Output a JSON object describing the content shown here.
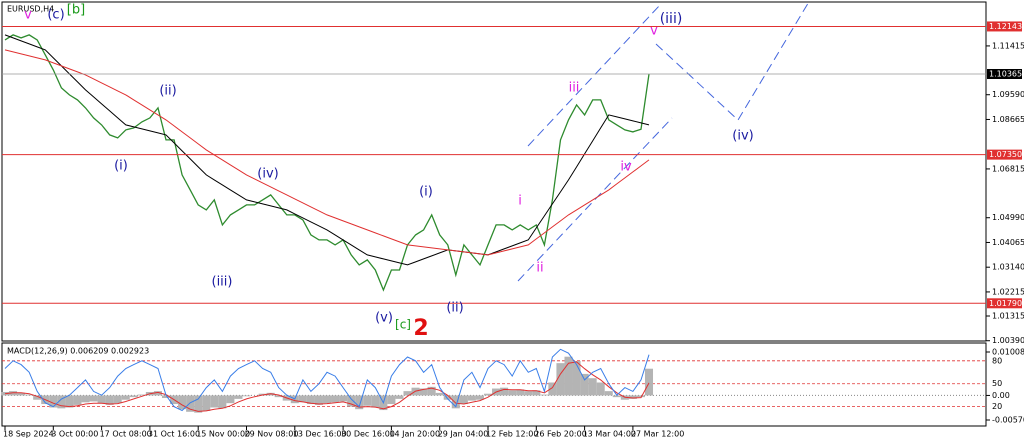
{
  "chart_data": [
    {
      "type": "line",
      "title": "EURUSD,H4",
      "categories": [
        "18 Sep 2024",
        null,
        null,
        null,
        null,
        null,
        "3 Oct 00:00",
        null,
        null,
        null,
        null,
        null,
        "17 Oct 08:00",
        null,
        null,
        null,
        null,
        null,
        "31 Oct 16:00",
        null,
        null,
        null,
        null,
        null,
        "15 Nov 00:00",
        null,
        null,
        null,
        null,
        null,
        "29 Nov 08:00",
        null,
        null,
        null,
        null,
        null,
        "13 Dec 16:00",
        null,
        null,
        null,
        null,
        null,
        "30 Dec 16:00",
        null,
        null,
        null,
        null,
        null,
        "14 Jan 20:00",
        null,
        null,
        null,
        null,
        null,
        "29 Jan 04:00",
        null,
        null,
        null,
        null,
        null,
        "12 Feb 12:00",
        null,
        null,
        null,
        null,
        null,
        "26 Feb 20:00",
        null,
        null,
        null,
        null,
        null,
        "13 Mar 04:00",
        null,
        null,
        null,
        null,
        null,
        "27 Mar 12:00",
        null,
        null
      ],
      "series": [
        {
          "color": "#2e8b2e",
          "values": [
            1.11639,
            1.11826,
            1.11714,
            1.11826,
            1.11639,
            1.11078,
            1.10517,
            1.09844,
            1.09582,
            1.09395,
            1.09096,
            1.08722,
            1.0846,
            1.08086,
            1.07974,
            1.08273,
            1.08348,
            1.08573,
            1.08722,
            1.09096,
            1.07899,
            1.07899,
            1.0659,
            1.06029,
            1.05468,
            1.05281,
            1.05655,
            1.0472,
            1.05094,
            1.05281,
            1.05468,
            1.05468,
            1.05655,
            1.05842,
            1.05468,
            1.05094,
            1.05094,
            1.04907,
            1.04346,
            1.04159,
            1.04159,
            1.03972,
            1.04159,
            1.03598,
            1.03224,
            1.03411,
            1.03037,
            1.02289,
            1.03037,
            1.03037,
            1.03972,
            1.04346,
            1.04533,
            1.05094,
            1.04346,
            1.03972,
            1.0285,
            1.03972,
            1.03598,
            1.03224,
            1.03972,
            1.0472,
            1.0472,
            1.04533,
            1.0472,
            1.04533,
            1.0472,
            1.03972,
            1.05655,
            1.07899,
            1.08647,
            1.09208,
            1.08834,
            1.09395,
            1.09395,
            1.08647,
            1.0846,
            1.08273,
            1.08199,
            1.083,
            1.10365
          ]
        },
        {
          "color": "#000000",
          "values": [
            1.11826,
            1.11714,
            1.11602,
            1.1149,
            1.11378,
            1.11265,
            1.10966,
            1.10667,
            1.10368,
            1.10069,
            1.09769,
            1.09508,
            1.09246,
            1.08984,
            1.08722,
            1.0846,
            1.08386,
            1.08311,
            1.08236,
            1.08161,
            1.08086,
            1.07787,
            1.07488,
            1.07189,
            1.0689,
            1.0659,
            1.06403,
            1.06216,
            1.06029,
            1.05842,
            1.05655,
            1.05581,
            1.05506,
            1.05431,
            1.05356,
            1.05281,
            1.05132,
            1.04982,
            1.04833,
            1.04683,
            1.04533,
            1.04346,
            1.04159,
            1.03972,
            1.03785,
            1.03598,
            1.03524,
            1.03449,
            1.03374,
            1.03299,
            1.03224,
            1.03337,
            1.03449,
            1.03561,
            1.03673,
            1.03785,
            1.03748,
            1.03711,
            1.03673,
            1.03636,
            1.03598,
            1.03711,
            1.03823,
            1.03935,
            1.04047,
            1.04159,
            1.04608,
            1.05057,
            1.05506,
            1.05954,
            1.06403,
            1.0689,
            1.07376,
            1.07862,
            1.08348,
            1.08834,
            1.08759,
            1.08685,
            1.0861,
            1.08535,
            1.0846
          ]
        },
        {
          "color": "#e03030",
          "values": [
            1.11265,
            1.11191,
            1.11116,
            1.11041,
            1.10966,
            1.10891,
            1.10779,
            1.10667,
            1.10555,
            1.10443,
            1.1033,
            1.10181,
            1.10031,
            1.09882,
            1.09732,
            1.09582,
            1.09395,
            1.09208,
            1.09021,
            1.08834,
            1.08647,
            1.08423,
            1.08199,
            1.07974,
            1.0775,
            1.07525,
            1.07338,
            1.07151,
            1.06964,
            1.06777,
            1.0659,
            1.06441,
            1.06291,
            1.06142,
            1.05992,
            1.05842,
            1.05693,
            1.05543,
            1.05394,
            1.05244,
            1.05094,
            1.04982,
            1.0487,
            1.04758,
            1.04646,
            1.04533,
            1.04421,
            1.04309,
            1.04197,
            1.04085,
            1.03972,
            1.03935,
            1.03898,
            1.0386,
            1.03823,
            1.03785,
            1.03748,
            1.03711,
            1.03673,
            1.03636,
            1.03598,
            1.03673,
            1.03748,
            1.03823,
            1.03898,
            1.03972,
            1.04197,
            1.04421,
            1.04646,
            1.0487,
            1.05094,
            1.05281,
            1.05468,
            1.05655,
            1.05842,
            1.06029,
            1.06254,
            1.06478,
            1.06703,
            1.06927,
            1.07151
          ]
        }
      ],
      "ylim": [
        1.0038,
        1.1302
      ],
      "yticks": [
        1.11415,
        {
          "value": 1.0959,
          "label": "1.09590"
        },
        1.08665,
        1.06815,
        {
          "value": 1.0499,
          "label": "1.04990"
        },
        1.04065,
        {
          "value": 1.0314,
          "label": "1.03140"
        },
        1.02215,
        1.01315,
        {
          "value": 1.0039,
          "label": "1.00390"
        }
      ],
      "levels": [
        1.12143,
        {
          "value": 1.0735,
          "label": "1.07350"
        },
        {
          "value": 1.0179,
          "label": "1.01790"
        }
      ],
      "level_color": "#e03030",
      "current_price": 1.10365,
      "annotations": [
        {
          "text": "v",
          "color": "#e020e0"
        },
        {
          "text": "(c)",
          "color": "#1a1aa0"
        },
        {
          "text": "[b]",
          "color": "#1a9a1a"
        },
        {
          "text": "(ii)",
          "color": "#1a1aa0"
        },
        {
          "text": "(i)",
          "color": "#1a1aa0"
        },
        {
          "text": "(iv)",
          "color": "#1a1aa0"
        },
        {
          "text": "(iii)",
          "color": "#1a1aa0"
        },
        {
          "text": "(v)",
          "color": "#1a1aa0"
        },
        {
          "text": "[c]",
          "color": "#1a9a1a"
        },
        {
          "text": "2",
          "color": "#e01010"
        },
        {
          "text": "(i)",
          "color": "#1a1aa0"
        },
        {
          "text": "(ii)",
          "color": "#1a1aa0"
        },
        {
          "text": "i",
          "color": "#e020e0"
        },
        {
          "text": "ii",
          "color": "#e020e0"
        },
        {
          "text": "iii",
          "color": "#e020e0"
        },
        {
          "text": "iv",
          "color": "#e020e0"
        },
        {
          "text": "v",
          "color": "#e020e0"
        },
        {
          "text": "(iii)",
          "color": "#1a1aa0"
        },
        {
          "text": "(iv)",
          "color": "#1a1aa0"
        }
      ]
    },
    {
      "type": "bar",
      "title": "MACD(12,26,9) 0.006209 0.002923",
      "color": "#b4b4b4",
      "values": [
        0.0008,
        0.001,
        0.0006,
        0.0002,
        -0.001,
        -0.002,
        -0.0028,
        -0.003,
        -0.0028,
        -0.0022,
        -0.0016,
        -0.0014,
        -0.0018,
        -0.0022,
        -0.0018,
        -0.001,
        -0.0004,
        0.0002,
        0.0008,
        0.001,
        -0.0006,
        -0.002,
        -0.0032,
        -0.0038,
        -0.004,
        -0.0036,
        -0.0028,
        -0.003,
        -0.0018,
        -0.0008,
        -0.0002,
        0,
        0.0004,
        0.0006,
        -0.0004,
        -0.0012,
        -0.0018,
        -0.0016,
        -0.002,
        -0.0022,
        -0.0018,
        -0.0016,
        -0.0014,
        -0.0026,
        -0.0032,
        -0.0024,
        -0.0028,
        -0.0034,
        -0.002,
        -0.0008,
        0.001,
        0.0018,
        0.0016,
        0.002,
        0.0006,
        -0.001,
        -0.003,
        -0.002,
        -0.0012,
        -0.001,
        0.0004,
        0.0016,
        0.0018,
        0.0012,
        0.0014,
        0.001,
        0.0012,
        0.0002,
        0.003,
        0.0075,
        0.009,
        0.008,
        0.005,
        0.004,
        0.003,
        0.001,
        -0.0004,
        -0.001,
        -0.0008,
        -0.0004,
        0.006209
      ],
      "series": [
        {
          "color": "#e03030",
          "values": [
            0.0004,
            0.0006,
            0.0006,
            0.0004,
            -0.0002,
            -0.001,
            -0.0018,
            -0.0024,
            -0.0026,
            -0.0024,
            -0.002,
            -0.0018,
            -0.0018,
            -0.002,
            -0.0019,
            -0.0014,
            -0.0008,
            -0.0002,
            0.0004,
            0.0007,
            0.0002,
            -0.001,
            -0.0022,
            -0.0032,
            -0.0037,
            -0.0036,
            -0.0032,
            -0.003,
            -0.0024,
            -0.0015,
            -0.0008,
            -0.0003,
            0.0001,
            0.0004,
            0.0001,
            -0.0006,
            -0.0012,
            -0.0015,
            -0.0018,
            -0.002,
            -0.0019,
            -0.0017,
            -0.0015,
            -0.002,
            -0.0027,
            -0.0026,
            -0.0027,
            -0.0031,
            -0.0026,
            -0.0016,
            -0.0002,
            0.001,
            0.0014,
            0.0017,
            0.0012,
            0,
            -0.0018,
            -0.002,
            -0.0016,
            -0.0012,
            -0.0004,
            0.0008,
            0.0014,
            0.0013,
            0.0013,
            0.0011,
            0.0011,
            0.0006,
            0.0018,
            0.005,
            0.0075,
            0.0078,
            0.0062,
            0.0048,
            0.0036,
            0.002,
            0.0006,
            -0.0004,
            -0.0006,
            -0.0005,
            0.002923
          ]
        },
        {
          "color": "#3a7ee8",
          "axis": "y2",
          "values": [
            70,
            80,
            75,
            65,
            40,
            25,
            20,
            30,
            35,
            45,
            55,
            40,
            35,
            45,
            60,
            70,
            75,
            80,
            75,
            70,
            35,
            20,
            15,
            25,
            30,
            45,
            55,
            40,
            60,
            70,
            75,
            80,
            70,
            65,
            45,
            35,
            30,
            55,
            40,
            50,
            65,
            60,
            45,
            30,
            20,
            55,
            45,
            25,
            60,
            75,
            85,
            80,
            65,
            75,
            45,
            30,
            20,
            55,
            65,
            45,
            70,
            80,
            75,
            60,
            80,
            65,
            70,
            40,
            85,
            95,
            90,
            75,
            55,
            65,
            70,
            50,
            35,
            45,
            40,
            55,
            88
          ]
        }
      ],
      "ylim": [
        -0.00687,
        0.01195
      ],
      "yticks": [
        0.010089,
        {
          "value": 0,
          "label": "0.00"
        },
        -0.005706
      ],
      "y2lim": [
        -4,
        102
      ],
      "y2ticks": [
        80,
        50,
        20
      ],
      "y2_level_color": "#e03030"
    }
  ]
}
